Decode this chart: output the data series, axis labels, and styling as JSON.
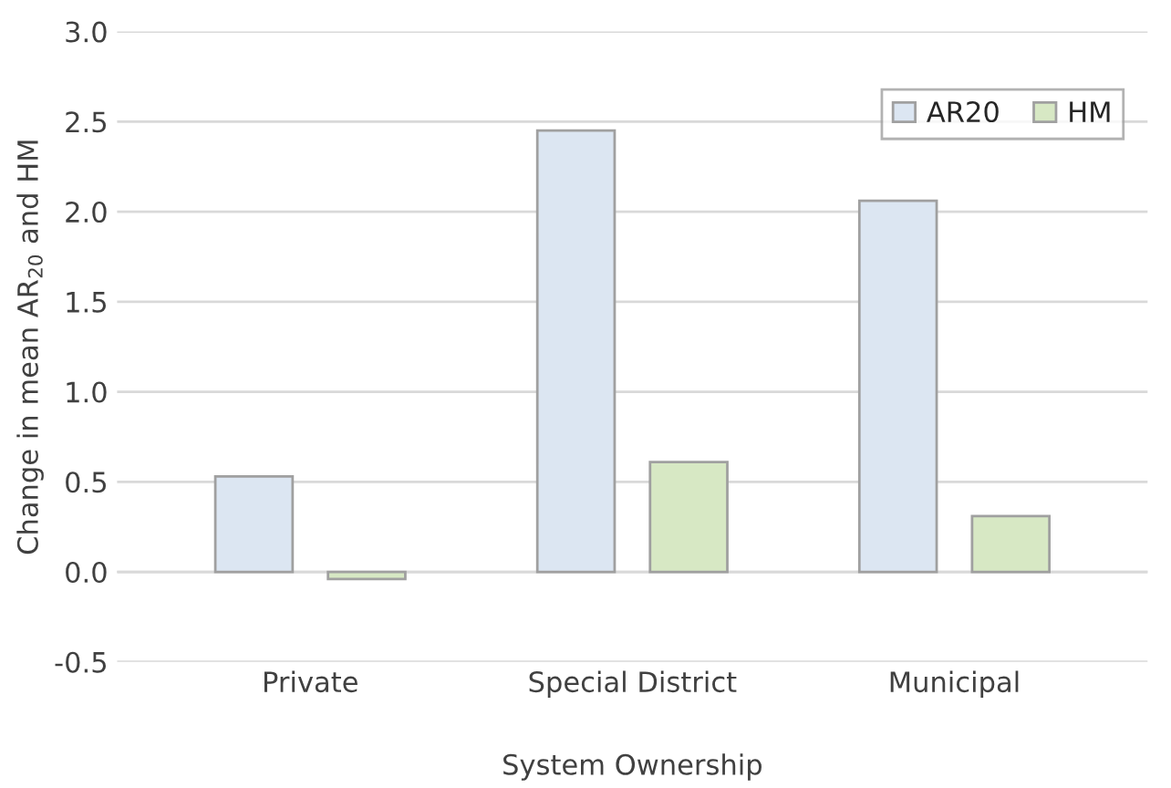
{
  "chart_data": {
    "type": "bar",
    "xlabel": "System Ownership",
    "ylabel": "Change in mean AR$_{20}$ and HM",
    "categories": [
      "Private",
      "Special District",
      "Municipal"
    ],
    "series": [
      {
        "name": "AR20",
        "color": "#dce6f2",
        "values": [
          0.53,
          2.45,
          2.06
        ]
      },
      {
        "name": "HM",
        "color": "#d7e8c4",
        "values": [
          -0.04,
          0.61,
          0.31
        ]
      }
    ],
    "ylim": [
      -0.5,
      3.0
    ],
    "yticks": [
      {
        "value": -0.5,
        "label": "-0.5"
      },
      {
        "value": 0.0,
        "label": "0.0"
      },
      {
        "value": 0.5,
        "label": "0.5"
      },
      {
        "value": 1.0,
        "label": "1.0"
      },
      {
        "value": 1.5,
        "label": "1.5"
      },
      {
        "value": 2.0,
        "label": "2.0"
      },
      {
        "value": 2.5,
        "label": "2.5"
      },
      {
        "value": 3.0,
        "label": "3.0"
      }
    ],
    "grid": "y",
    "legend": "top right"
  }
}
